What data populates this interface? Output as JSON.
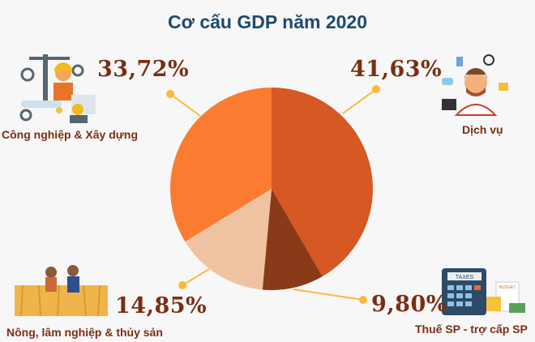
{
  "chart_data": {
    "type": "pie",
    "title": "Cơ cấu GDP năm 2020",
    "slices": [
      {
        "name": "Dịch vụ",
        "value": 41.63,
        "label": "41,63%",
        "color": "#d65822"
      },
      {
        "name": "Thuế SP - trợ cấp SP",
        "value": 9.8,
        "label": "9,80%",
        "color": "#8a3a18"
      },
      {
        "name": "Nông, lâm nghiệp & thủy sản",
        "value": 14.85,
        "label": "14,85%",
        "color": "#efc3a2"
      },
      {
        "name": "Công nghiệp & Xây dựng",
        "value": 33.72,
        "label": "33,72%",
        "color": "#fb7b30"
      }
    ],
    "start": "top",
    "direction": "clockwise"
  },
  "icons": [
    "construction-worker-icon",
    "customer-service-icon",
    "farmers-icon",
    "taxes-calculator-icon"
  ],
  "leader_color": "#fbb93a",
  "taxes_text": "TAXES",
  "budget_text": "BUDGET"
}
